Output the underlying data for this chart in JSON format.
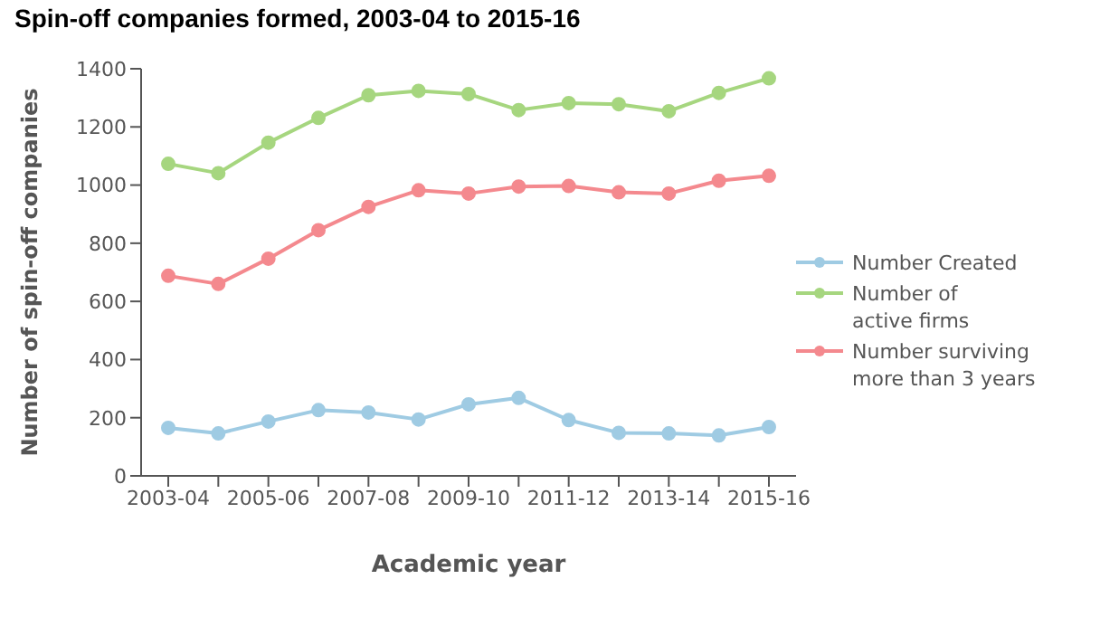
{
  "chart_data": {
    "type": "line",
    "title": "Spin-off companies formed, 2003-04 to 2015-16",
    "xlabel": "Academic year",
    "ylabel": "Number of spin-off companies",
    "categories": [
      "2003-04",
      null,
      "2005-06",
      null,
      "2007-08",
      null,
      "2009-10",
      null,
      "2011-12",
      null,
      "2013-14",
      null,
      "2015-16"
    ],
    "series": [
      {
        "name": "Number Created",
        "color": "#9fcbe3",
        "values": [
          165,
          146,
          187,
          226,
          218,
          194,
          246,
          268,
          192,
          148,
          146,
          139,
          168
        ]
      },
      {
        "name": "Number of active firms",
        "color": "#a6d67f",
        "values": [
          1073,
          1041,
          1146,
          1231,
          1309,
          1324,
          1313,
          1258,
          1282,
          1278,
          1254,
          1317,
          1367
        ]
      },
      {
        "name": "Number surviving more than 3 years",
        "color": "#f4898e",
        "values": [
          688,
          660,
          747,
          845,
          925,
          982,
          971,
          995,
          997,
          975,
          971,
          1015,
          1032
        ]
      }
    ],
    "ylim": [
      0,
      1400
    ],
    "yticks": [
      0,
      200,
      400,
      600,
      800,
      1000,
      1200,
      1400
    ],
    "grid": false,
    "legend": "right",
    "marker": "circle",
    "line_style": "solid"
  }
}
